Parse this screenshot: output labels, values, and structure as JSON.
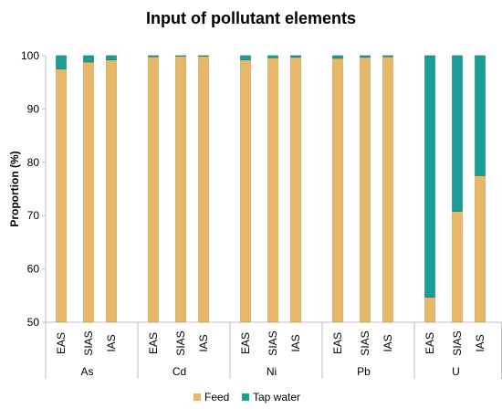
{
  "chart_data": {
    "type": "bar",
    "stacked": true,
    "title": "Input of pollutant elements",
    "xlabel": "",
    "ylabel": "Proportion (%)",
    "ylim": [
      50,
      100
    ],
    "yticks": [
      50,
      60,
      70,
      80,
      90,
      100
    ],
    "grid": false,
    "legend_position": "bottom",
    "groups": [
      "As",
      "Cd",
      "Ni",
      "Pb",
      "U"
    ],
    "categories": [
      "EAS",
      "SIAS",
      "IAS"
    ],
    "series": [
      {
        "name": "Feed",
        "color": "#E8B86A",
        "values": [
          [
            97.5,
            98.8,
            99.2
          ],
          [
            99.8,
            99.9,
            99.9
          ],
          [
            99.2,
            99.6,
            99.7
          ],
          [
            99.5,
            99.7,
            99.8
          ],
          [
            54.7,
            70.8,
            77.5
          ]
        ]
      },
      {
        "name": "Tap water",
        "color": "#1A9E96",
        "values": [
          [
            2.5,
            1.2,
            0.8
          ],
          [
            0.2,
            0.1,
            0.1
          ],
          [
            0.8,
            0.4,
            0.3
          ],
          [
            0.5,
            0.3,
            0.2
          ],
          [
            45.3,
            29.2,
            22.5
          ]
        ]
      }
    ]
  }
}
